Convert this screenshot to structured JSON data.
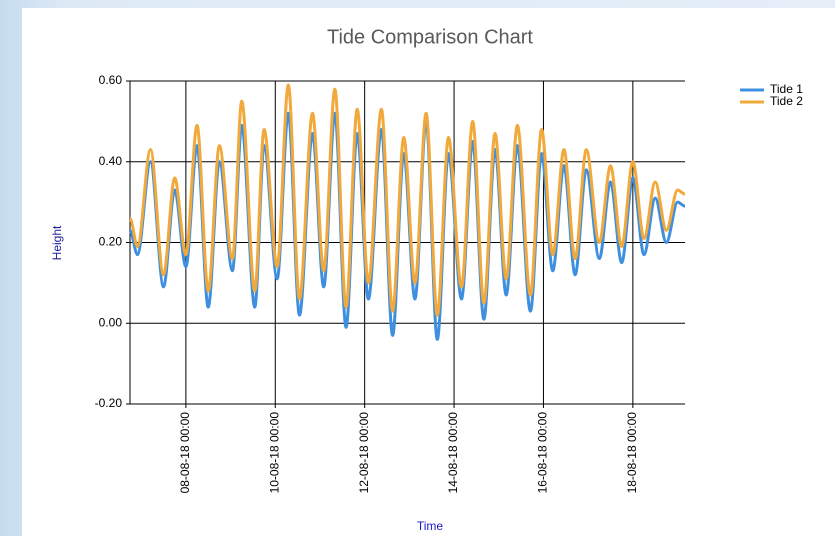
{
  "chart_data": {
    "type": "line",
    "title": "Tide Comparison Chart",
    "xlabel": "Time",
    "ylabel": "Height",
    "x": [
      "2018-08-06T18:00",
      "2018-08-06T22:00",
      "2018-08-07T05:00",
      "2018-08-07T12:00",
      "2018-08-07T18:00",
      "2018-08-08T00:00",
      "2018-08-08T06:00",
      "2018-08-08T12:00",
      "2018-08-08T18:00",
      "2018-08-09T01:00",
      "2018-08-09T06:00",
      "2018-08-09T13:00",
      "2018-08-09T18:00",
      "2018-08-10T01:00",
      "2018-08-10T07:00",
      "2018-08-10T13:00",
      "2018-08-10T20:00",
      "2018-08-11T02:00",
      "2018-08-11T08:00",
      "2018-08-11T14:00",
      "2018-08-11T20:00",
      "2018-08-12T02:00",
      "2018-08-12T09:00",
      "2018-08-12T15:00",
      "2018-08-12T21:00",
      "2018-08-13T03:00",
      "2018-08-13T09:00",
      "2018-08-13T15:00",
      "2018-08-13T21:00",
      "2018-08-14T04:00",
      "2018-08-14T10:00",
      "2018-08-14T16:00",
      "2018-08-14T22:00",
      "2018-08-15T04:00",
      "2018-08-15T10:00",
      "2018-08-15T17:00",
      "2018-08-15T23:00",
      "2018-08-16T05:00",
      "2018-08-16T11:00",
      "2018-08-16T17:00",
      "2018-08-16T23:00",
      "2018-08-17T06:00",
      "2018-08-17T12:00",
      "2018-08-17T18:00",
      "2018-08-18T00:00",
      "2018-08-18T06:00",
      "2018-08-18T12:00",
      "2018-08-18T18:00",
      "2018-08-19T00:00",
      "2018-08-19T04:00"
    ],
    "series": [
      {
        "name": "Tide 1",
        "color": "#3f8fe0",
        "values": [
          0.23,
          0.17,
          0.4,
          0.09,
          0.33,
          0.14,
          0.44,
          0.04,
          0.4,
          0.13,
          0.49,
          0.04,
          0.44,
          0.11,
          0.52,
          0.02,
          0.47,
          0.09,
          0.52,
          -0.01,
          0.47,
          0.06,
          0.48,
          -0.03,
          0.42,
          0.06,
          0.5,
          -0.04,
          0.42,
          0.06,
          0.45,
          0.01,
          0.43,
          0.07,
          0.44,
          0.03,
          0.42,
          0.13,
          0.39,
          0.12,
          0.38,
          0.16,
          0.35,
          0.15,
          0.36,
          0.17,
          0.31,
          0.2,
          0.3,
          0.29
        ]
      },
      {
        "name": "Tide 2",
        "color": "#f2a93b",
        "values": [
          0.26,
          0.19,
          0.43,
          0.12,
          0.36,
          0.17,
          0.49,
          0.08,
          0.44,
          0.16,
          0.55,
          0.08,
          0.48,
          0.14,
          0.59,
          0.06,
          0.52,
          0.13,
          0.58,
          0.04,
          0.53,
          0.1,
          0.53,
          0.03,
          0.46,
          0.1,
          0.52,
          0.02,
          0.46,
          0.09,
          0.5,
          0.05,
          0.47,
          0.11,
          0.49,
          0.07,
          0.48,
          0.17,
          0.43,
          0.16,
          0.43,
          0.2,
          0.39,
          0.19,
          0.4,
          0.21,
          0.35,
          0.23,
          0.33,
          0.32
        ]
      }
    ],
    "xlim": [
      "2018-08-06T18:00",
      "2018-08-19T04:00"
    ],
    "xticks": [
      {
        "value": "2018-08-08T00:00",
        "label": "08-08-18 00:00"
      },
      {
        "value": "2018-08-10T00:00",
        "label": "10-08-18 00:00"
      },
      {
        "value": "2018-08-12T00:00",
        "label": "12-08-18 00:00"
      },
      {
        "value": "2018-08-14T00:00",
        "label": "14-08-18 00:00"
      },
      {
        "value": "2018-08-16T00:00",
        "label": "16-08-18 00:00"
      },
      {
        "value": "2018-08-18T00:00",
        "label": "18-08-18 00:00"
      }
    ],
    "ylim": [
      -0.2,
      0.6
    ],
    "yticks": [
      {
        "value": 0.6,
        "label": "0.60"
      },
      {
        "value": 0.4,
        "label": "0.40"
      },
      {
        "value": 0.2,
        "label": "0.20"
      },
      {
        "value": 0,
        "label": "0.00"
      },
      {
        "value": -0.2,
        "label": "-0.20"
      }
    ],
    "grid": true,
    "legend": "upper right"
  }
}
